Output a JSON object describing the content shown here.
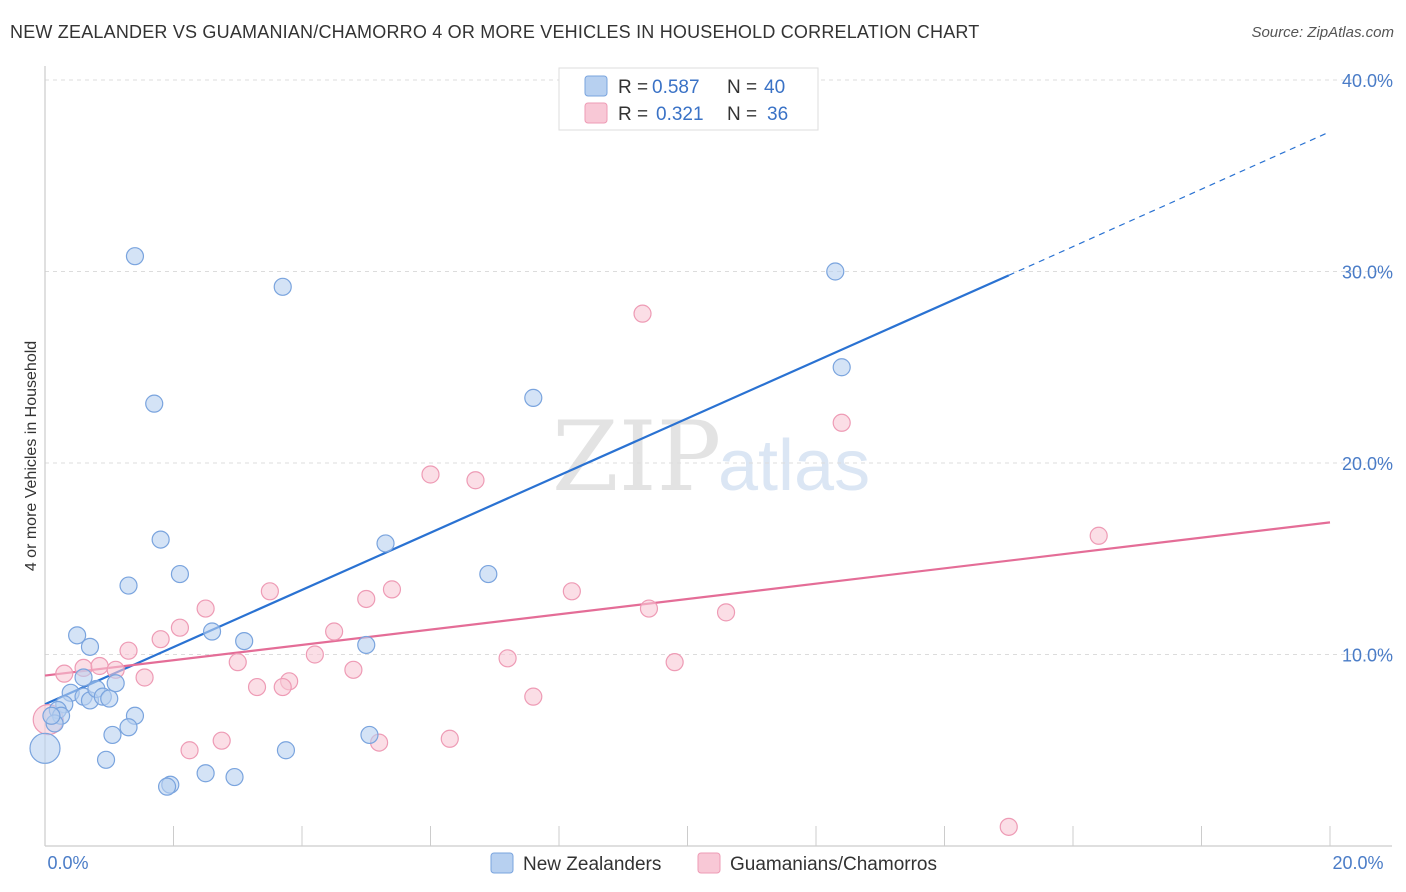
{
  "title": "NEW ZEALANDER VS GUAMANIAN/CHAMORRO 4 OR MORE VEHICLES IN HOUSEHOLD CORRELATION CHART",
  "source": "Source: ZipAtlas.com",
  "watermark": {
    "zip": "ZIP",
    "atlas": "atlas"
  },
  "colors": {
    "blue_fill": "#b7d0f0",
    "blue_stroke": "#7aa4de",
    "blue_line": "#2a72d2",
    "pink_fill": "#f8c8d6",
    "pink_stroke": "#ee9bb5",
    "pink_line": "#e46d97",
    "tick_text": "#4a7cc7",
    "grid": "#dcdcdc"
  },
  "legend": {
    "rows": [
      {
        "r_label": "R =",
        "r_value": "0.587",
        "n_label": "N =",
        "n_value": "40"
      },
      {
        "r_label": "R =",
        "r_value": "0.321",
        "n_label": "N =",
        "n_value": "36"
      }
    ]
  },
  "chart_data": {
    "type": "scatter",
    "title": "NEW ZEALANDER VS GUAMANIAN/CHAMORRO 4 OR MORE VEHICLES IN HOUSEHOLD CORRELATION CHART",
    "xlabel": "",
    "ylabel": "4 or more Vehicles in Household",
    "xlim": [
      0,
      20
    ],
    "ylim": [
      0,
      40
    ],
    "x_tick_labels": [
      "0.0%",
      "20.0%"
    ],
    "y_ticks": [
      10,
      20,
      30,
      40
    ],
    "y_tick_labels": [
      "10.0%",
      "20.0%",
      "30.0%",
      "40.0%"
    ],
    "grid": true,
    "legend_position": "top-center",
    "series": [
      {
        "name": "New Zealanders",
        "r": 0.587,
        "n": 40,
        "trend": {
          "x0": 0,
          "y0": 7.4,
          "x1": 15,
          "y1": 29.8,
          "dash_to_x": 20,
          "dash_to_y": 37.3
        },
        "points": [
          [
            1.4,
            30.8
          ],
          [
            3.7,
            29.2
          ],
          [
            12.3,
            30.0
          ],
          [
            12.4,
            25.0
          ],
          [
            1.7,
            23.1
          ],
          [
            7.6,
            23.4
          ],
          [
            1.8,
            16.0
          ],
          [
            5.3,
            15.8
          ],
          [
            1.3,
            13.6
          ],
          [
            2.1,
            14.2
          ],
          [
            6.9,
            14.2
          ],
          [
            0.5,
            11.0
          ],
          [
            0.7,
            10.4
          ],
          [
            2.6,
            11.2
          ],
          [
            3.1,
            10.7
          ],
          [
            5.0,
            10.5
          ],
          [
            0.6,
            8.8
          ],
          [
            0.4,
            8.0
          ],
          [
            0.6,
            7.8
          ],
          [
            0.7,
            7.6
          ],
          [
            0.8,
            8.2
          ],
          [
            0.9,
            7.8
          ],
          [
            1.0,
            7.7
          ],
          [
            0.3,
            7.4
          ],
          [
            0.2,
            7.1
          ],
          [
            0.25,
            6.8
          ],
          [
            0.15,
            6.4
          ],
          [
            1.1,
            8.5
          ],
          [
            1.4,
            6.8
          ],
          [
            1.3,
            6.2
          ],
          [
            1.05,
            5.8
          ],
          [
            0.0,
            5.1
          ],
          [
            0.95,
            4.5
          ],
          [
            2.5,
            3.8
          ],
          [
            2.95,
            3.6
          ],
          [
            3.75,
            5.0
          ],
          [
            5.05,
            5.8
          ],
          [
            1.95,
            3.2
          ],
          [
            1.9,
            3.1
          ],
          [
            0.1,
            6.8
          ]
        ]
      },
      {
        "name": "Guamanians/Chamorros",
        "r": 0.321,
        "n": 36,
        "trend": {
          "x0": 0,
          "y0": 8.9,
          "x1": 20,
          "y1": 16.9
        },
        "points": [
          [
            9.3,
            27.8
          ],
          [
            12.4,
            22.1
          ],
          [
            6.0,
            19.4
          ],
          [
            6.7,
            19.1
          ],
          [
            16.4,
            16.2
          ],
          [
            3.5,
            13.3
          ],
          [
            5.4,
            13.4
          ],
          [
            8.2,
            13.3
          ],
          [
            5.0,
            12.9
          ],
          [
            2.5,
            12.4
          ],
          [
            9.4,
            12.4
          ],
          [
            10.6,
            12.2
          ],
          [
            2.1,
            11.4
          ],
          [
            4.5,
            11.2
          ],
          [
            1.8,
            10.8
          ],
          [
            1.3,
            10.2
          ],
          [
            4.2,
            10.0
          ],
          [
            7.2,
            9.8
          ],
          [
            3.0,
            9.6
          ],
          [
            9.8,
            9.6
          ],
          [
            4.8,
            9.2
          ],
          [
            0.6,
            9.3
          ],
          [
            0.3,
            9.0
          ],
          [
            0.85,
            9.4
          ],
          [
            1.1,
            9.2
          ],
          [
            1.55,
            8.8
          ],
          [
            3.3,
            8.3
          ],
          [
            3.8,
            8.6
          ],
          [
            3.7,
            8.3
          ],
          [
            7.6,
            7.8
          ],
          [
            2.75,
            5.5
          ],
          [
            6.3,
            5.6
          ],
          [
            5.2,
            5.4
          ],
          [
            2.25,
            5.0
          ],
          [
            15.0,
            1.0
          ],
          [
            0.05,
            6.6
          ]
        ]
      }
    ]
  }
}
